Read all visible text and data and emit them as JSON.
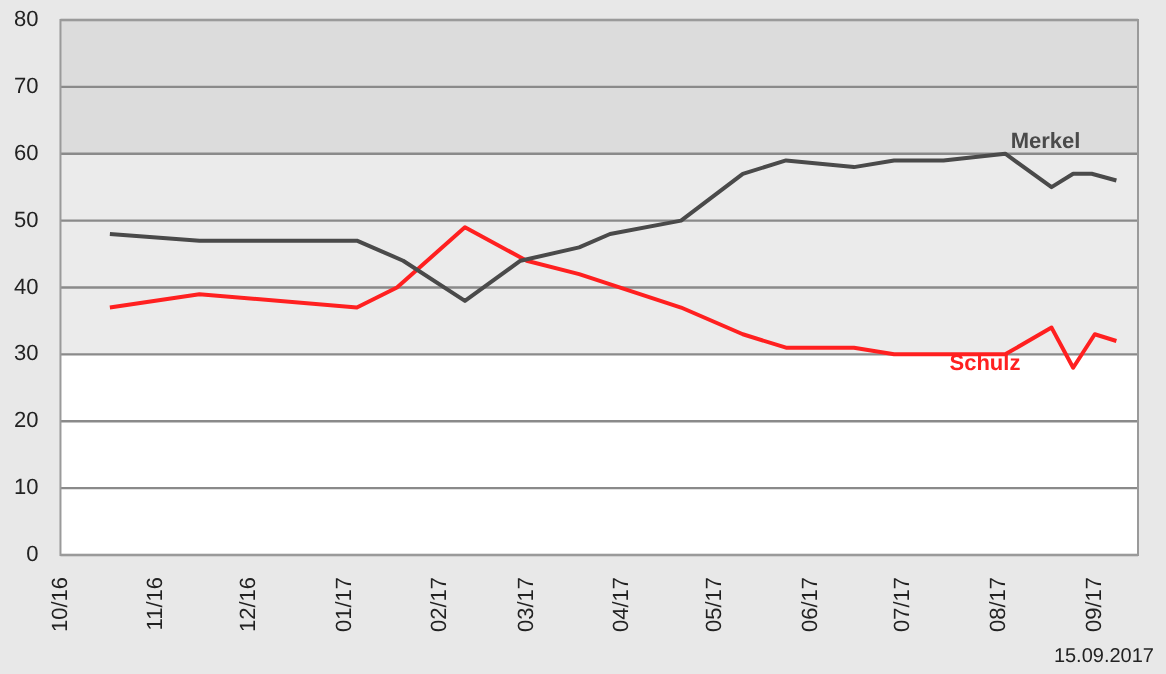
{
  "chart_data": {
    "type": "line",
    "xlim": [
      "2016-10-01",
      "2017-09-15"
    ],
    "xticks": [
      {
        "value": "2016-10-01",
        "label": "10/16"
      },
      {
        "value": "2016-11-01",
        "label": "11/16"
      },
      {
        "value": "2016-12-01",
        "label": "12/16"
      },
      {
        "value": "2017-01-01",
        "label": "01/17"
      },
      {
        "value": "2017-02-01",
        "label": "02/17"
      },
      {
        "value": "2017-03-01",
        "label": "03/17"
      },
      {
        "value": "2017-04-01",
        "label": "04/17"
      },
      {
        "value": "2017-05-01",
        "label": "05/17"
      },
      {
        "value": "2017-06-01",
        "label": "06/17"
      },
      {
        "value": "2017-07-01",
        "label": "07/17"
      },
      {
        "value": "2017-08-01",
        "label": "08/17"
      },
      {
        "value": "2017-09-01",
        "label": "09/17"
      }
    ],
    "ylim": [
      0,
      80
    ],
    "yticks": [
      0,
      10,
      20,
      30,
      40,
      50,
      60,
      70,
      80
    ],
    "grid": "y",
    "legend": false,
    "marker": "none",
    "line_style": "solid",
    "bands": [
      {
        "axis": "y",
        "from": 60,
        "to": 80,
        "color": "#dcdcdc"
      },
      {
        "axis": "y",
        "from": 30,
        "to": 60,
        "color": "#ebebeb"
      }
    ],
    "series": [
      {
        "name": "Merkel",
        "color": "#4a4a4a",
        "x": [
          "2016-10-17",
          "2016-11-15",
          "2017-01-05",
          "2017-01-20",
          "2017-02-09",
          "2017-02-27",
          "2017-03-18",
          "2017-03-28",
          "2017-04-20",
          "2017-05-10",
          "2017-05-24",
          "2017-06-15",
          "2017-06-28",
          "2017-07-14",
          "2017-08-03",
          "2017-08-18",
          "2017-08-25",
          "2017-08-31",
          "2017-09-08"
        ],
        "values": [
          48,
          47,
          47,
          44,
          38,
          44,
          46,
          48,
          50,
          57,
          59,
          58,
          59,
          59,
          60,
          55,
          57,
          57,
          56
        ]
      },
      {
        "name": "Schulz",
        "color": "#ff2020",
        "x": [
          "2016-10-17",
          "2016-11-15",
          "2017-01-05",
          "2017-01-18",
          "2017-02-09",
          "2017-03-01",
          "2017-03-18",
          "2017-04-20",
          "2017-05-10",
          "2017-05-24",
          "2017-06-15",
          "2017-06-28",
          "2017-08-03",
          "2017-08-18",
          "2017-08-25",
          "2017-09-01",
          "2017-09-08"
        ],
        "values": [
          37,
          39,
          37,
          40,
          49,
          44,
          42,
          37,
          33,
          31,
          31,
          30,
          30,
          34,
          28,
          33,
          32
        ]
      }
    ],
    "annotations": [
      "15.09.2017"
    ]
  }
}
